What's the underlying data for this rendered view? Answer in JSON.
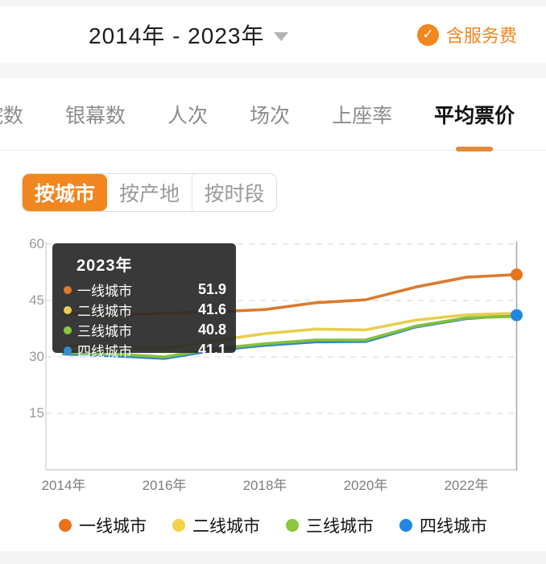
{
  "header": {
    "date_range": "2014年 - 2023年",
    "service_fee_label": "含服务费",
    "check_glyph": "✓"
  },
  "tabs": {
    "partial_label": "影院数",
    "items": [
      "银幕数",
      "人次",
      "场次",
      "上座率",
      "平均票价"
    ],
    "active": "平均票价"
  },
  "subtabs": {
    "items": [
      "按城市",
      "按产地",
      "按时段"
    ],
    "active": "按城市"
  },
  "colors": {
    "accent": "#F2861F",
    "underline": "#E28A3A",
    "grid": "#DCDCDC",
    "axis": "#CFCFCF",
    "indicator": "#A9A9A9"
  },
  "chart_data": {
    "type": "line",
    "x": [
      2014,
      2015,
      2016,
      2017,
      2018,
      2019,
      2020,
      2021,
      2022,
      2023
    ],
    "x_tick_labels": [
      "2014年",
      "2016年",
      "2018年",
      "2020年",
      "2022年"
    ],
    "x_tick_years": [
      2014,
      2016,
      2018,
      2020,
      2022
    ],
    "y_ticks": [
      60,
      45,
      30,
      15
    ],
    "ylim": [
      0,
      60
    ],
    "grid": "dashed-horizontal",
    "legend_position": "bottom",
    "series": [
      {
        "name": "一线城市",
        "color": "#DB7B2E",
        "values": [
          41.5,
          41.2,
          41.6,
          42.0,
          42.6,
          44.4,
          45.2,
          48.6,
          51.2,
          51.9
        ]
      },
      {
        "name": "二线城市",
        "color": "#E8CE4D",
        "values": [
          33.0,
          32.6,
          32.2,
          34.3,
          36.2,
          37.4,
          37.2,
          39.8,
          41.2,
          41.6
        ]
      },
      {
        "name": "三线城市",
        "color": "#85C03C",
        "values": [
          31.2,
          30.8,
          30.0,
          32.2,
          33.5,
          34.5,
          34.5,
          38.2,
          40.4,
          40.8
        ]
      },
      {
        "name": "四线城市",
        "color": "#2E86C8",
        "values": [
          30.8,
          30.3,
          29.6,
          31.8,
          33.1,
          34.0,
          34.1,
          38.0,
          40.2,
          41.1
        ]
      }
    ],
    "end_dot_series": [
      "一线城市",
      "四线城市"
    ],
    "end_dot_colors": {
      "一线城市": "#E8731A",
      "四线城市": "#2188E0"
    },
    "indicator_year": 2023
  },
  "tooltip": {
    "title": "2023年",
    "rows": [
      {
        "label": "一线城市",
        "value": "51.9",
        "color": "#E2792D"
      },
      {
        "label": "二线城市",
        "value": "41.6",
        "color": "#E8CE4D"
      },
      {
        "label": "三线城市",
        "value": "40.8",
        "color": "#8CC63F"
      },
      {
        "label": "四线城市",
        "value": "41.1",
        "color": "#2E8FD6"
      }
    ]
  },
  "legend": {
    "items": [
      {
        "label": "一线城市",
        "color": "#E8731A"
      },
      {
        "label": "二线城市",
        "color": "#F2D14B"
      },
      {
        "label": "三线城市",
        "color": "#8CC63F"
      },
      {
        "label": "四线城市",
        "color": "#2188E0"
      }
    ]
  }
}
